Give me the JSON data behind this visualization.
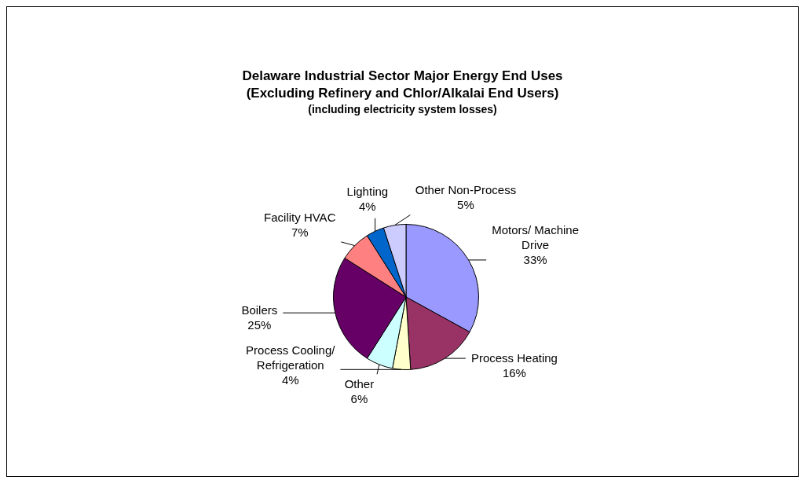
{
  "chart_data": {
    "type": "pie",
    "title": "Delaware Industrial Sector Major Energy End Uses\n(Excluding Refinery and Chlor/Alkalai End Users)",
    "subtitle": "(including electricity system losses)",
    "categories": [
      "Motors/ Machine Drive",
      "Process Heating",
      "Process Cooling/ Refrigeration",
      "Other",
      "Boilers",
      "Facility HVAC",
      "Lighting",
      "Other Non-Process"
    ],
    "values": [
      33,
      16,
      4,
      6,
      25,
      7,
      4,
      5
    ],
    "value_labels": [
      "33%",
      "16%",
      "4%",
      "6%",
      "25%",
      "7%",
      "4%",
      "5%"
    ],
    "colors": [
      "#9999ff",
      "#993366",
      "#ffffcc",
      "#ccffff",
      "#660066",
      "#ff8080",
      "#0066cc",
      "#ccccff"
    ],
    "legend": false
  }
}
